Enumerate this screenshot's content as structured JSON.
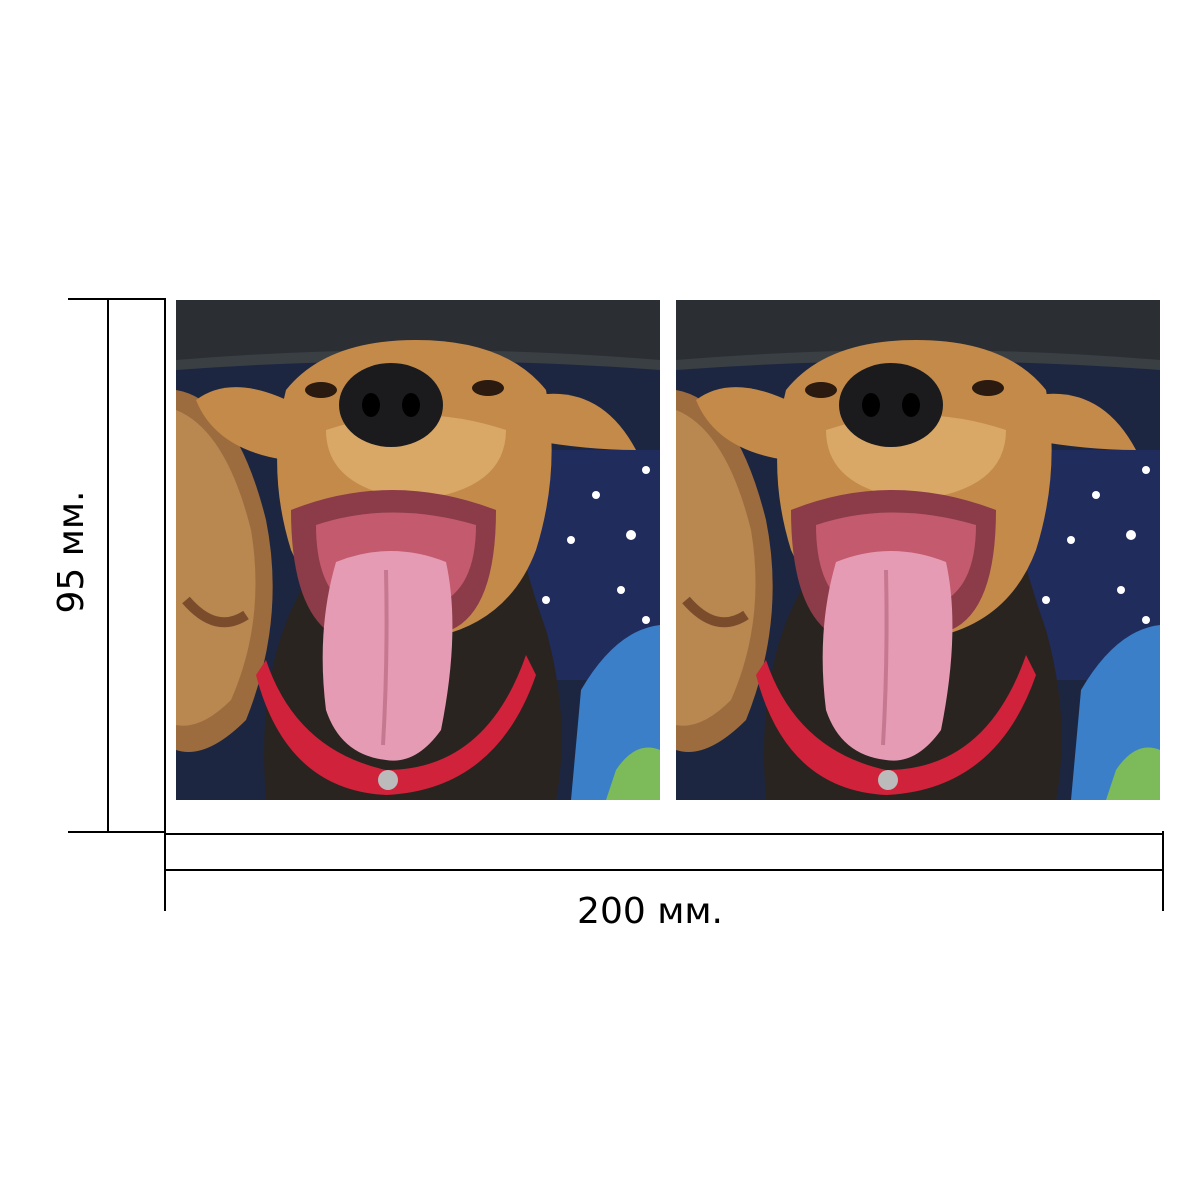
{
  "dimensions": {
    "height_label": "95 мм.",
    "width_label": "200 мм."
  },
  "photos": [
    {
      "subject": "dog-with-tongue-out"
    },
    {
      "subject": "dog-with-tongue-out"
    }
  ],
  "colors": {
    "background": "#ffffff",
    "dimension_lines": "#000000",
    "car_headliner": "#2b2f33",
    "dog_fur": "#c48a4a",
    "tongue": "#e59bb3",
    "collar": "#d0223a",
    "star_fabric": "#1f2c5c",
    "wicker": "#9c6c3e"
  }
}
